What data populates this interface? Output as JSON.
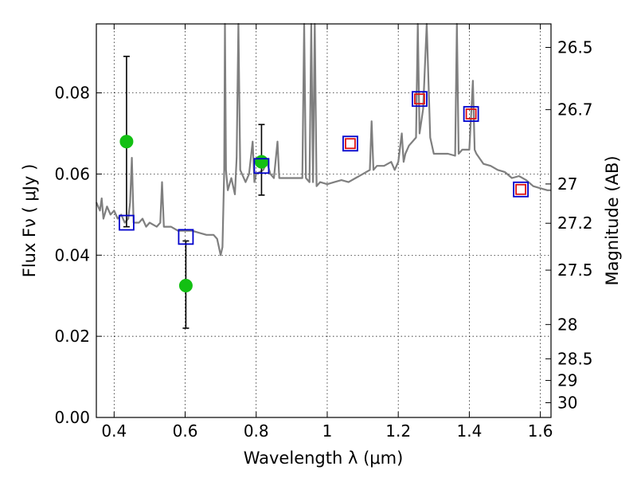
{
  "chart_data": {
    "type": "scatter",
    "xlabel": "Wavelength  λ (μm)",
    "ylabel": "Flux  Fν  ( μJy )",
    "y2label": "Magnitude (AB)",
    "xlim": [
      0.35,
      1.63
    ],
    "ylim": [
      0.0,
      0.097
    ],
    "x_ticks": [
      "0.4",
      "0.6",
      "0.8",
      "1",
      "1.2",
      "1.4",
      "1.6"
    ],
    "x_tick_values": [
      0.4,
      0.6,
      0.8,
      1.0,
      1.2,
      1.4,
      1.6
    ],
    "y_ticks": [
      "0.00",
      "0.02",
      "0.04",
      "0.06",
      "0.08"
    ],
    "y_tick_values": [
      0.0,
      0.02,
      0.04,
      0.06,
      0.08
    ],
    "mag_ticks": [
      "26.5",
      "26.7",
      "27",
      "27.2",
      "27.5",
      "28",
      "28.5",
      "29",
      "30"
    ],
    "mag_tick_values": [
      26.5,
      26.7,
      27.0,
      27.2,
      27.5,
      28.0,
      28.5,
      29.0,
      30.0
    ],
    "grid": true,
    "series": [
      {
        "style": "line",
        "color": "#7f7f7f",
        "points": [
          [
            0.35,
            0.053
          ],
          [
            0.36,
            0.051
          ],
          [
            0.365,
            0.054
          ],
          [
            0.37,
            0.049
          ],
          [
            0.38,
            0.052
          ],
          [
            0.39,
            0.05
          ],
          [
            0.4,
            0.051
          ],
          [
            0.41,
            0.049
          ],
          [
            0.42,
            0.05
          ],
          [
            0.43,
            0.048
          ],
          [
            0.44,
            0.049
          ],
          [
            0.445,
            0.053
          ],
          [
            0.45,
            0.064
          ],
          [
            0.455,
            0.048
          ],
          [
            0.47,
            0.048
          ],
          [
            0.48,
            0.049
          ],
          [
            0.49,
            0.047
          ],
          [
            0.5,
            0.048
          ],
          [
            0.52,
            0.047
          ],
          [
            0.53,
            0.048
          ],
          [
            0.535,
            0.058
          ],
          [
            0.54,
            0.047
          ],
          [
            0.56,
            0.047
          ],
          [
            0.58,
            0.046
          ],
          [
            0.6,
            0.046
          ],
          [
            0.62,
            0.046
          ],
          [
            0.64,
            0.0455
          ],
          [
            0.66,
            0.045
          ],
          [
            0.68,
            0.045
          ],
          [
            0.69,
            0.044
          ],
          [
            0.7,
            0.04
          ],
          [
            0.705,
            0.042
          ],
          [
            0.71,
            0.061
          ],
          [
            0.712,
            0.097
          ],
          [
            0.715,
            0.061
          ],
          [
            0.72,
            0.056
          ],
          [
            0.73,
            0.059
          ],
          [
            0.74,
            0.055
          ],
          [
            0.745,
            0.064
          ],
          [
            0.75,
            0.097
          ],
          [
            0.755,
            0.061
          ],
          [
            0.77,
            0.058
          ],
          [
            0.78,
            0.06
          ],
          [
            0.79,
            0.068
          ],
          [
            0.795,
            0.058
          ],
          [
            0.8,
            0.06
          ],
          [
            0.82,
            0.061
          ],
          [
            0.83,
            0.063
          ],
          [
            0.84,
            0.06
          ],
          [
            0.85,
            0.059
          ],
          [
            0.86,
            0.068
          ],
          [
            0.865,
            0.059
          ],
          [
            0.88,
            0.059
          ],
          [
            0.9,
            0.059
          ],
          [
            0.92,
            0.059
          ],
          [
            0.93,
            0.059
          ],
          [
            0.935,
            0.097
          ],
          [
            0.94,
            0.059
          ],
          [
            0.95,
            0.058
          ],
          [
            0.955,
            0.097
          ],
          [
            0.96,
            0.058
          ],
          [
            0.965,
            0.097
          ],
          [
            0.97,
            0.057
          ],
          [
            0.98,
            0.058
          ],
          [
            1.0,
            0.0575
          ],
          [
            1.02,
            0.058
          ],
          [
            1.04,
            0.0585
          ],
          [
            1.06,
            0.058
          ],
          [
            1.08,
            0.059
          ],
          [
            1.1,
            0.06
          ],
          [
            1.12,
            0.061
          ],
          [
            1.125,
            0.073
          ],
          [
            1.13,
            0.061
          ],
          [
            1.14,
            0.062
          ],
          [
            1.16,
            0.062
          ],
          [
            1.18,
            0.063
          ],
          [
            1.19,
            0.061
          ],
          [
            1.2,
            0.063
          ],
          [
            1.21,
            0.07
          ],
          [
            1.215,
            0.063
          ],
          [
            1.22,
            0.065
          ],
          [
            1.23,
            0.067
          ],
          [
            1.25,
            0.069
          ],
          [
            1.255,
            0.097
          ],
          [
            1.26,
            0.07
          ],
          [
            1.27,
            0.076
          ],
          [
            1.28,
            0.097
          ],
          [
            1.29,
            0.069
          ],
          [
            1.3,
            0.065
          ],
          [
            1.32,
            0.065
          ],
          [
            1.34,
            0.065
          ],
          [
            1.36,
            0.0645
          ],
          [
            1.365,
            0.097
          ],
          [
            1.37,
            0.065
          ],
          [
            1.38,
            0.066
          ],
          [
            1.4,
            0.066
          ],
          [
            1.41,
            0.083
          ],
          [
            1.415,
            0.066
          ],
          [
            1.42,
            0.065
          ],
          [
            1.44,
            0.0625
          ],
          [
            1.46,
            0.062
          ],
          [
            1.48,
            0.061
          ],
          [
            1.5,
            0.0605
          ],
          [
            1.52,
            0.059
          ],
          [
            1.54,
            0.0595
          ],
          [
            1.56,
            0.0585
          ],
          [
            1.58,
            0.057
          ],
          [
            1.6,
            0.0565
          ],
          [
            1.62,
            0.056
          ],
          [
            1.63,
            0.056
          ]
        ]
      },
      {
        "style": "circle",
        "color": "#13c013",
        "points": [
          [
            0.435,
            0.068
          ],
          [
            0.602,
            0.0325
          ],
          [
            0.815,
            0.063
          ]
        ]
      },
      {
        "style": "open-square",
        "color": "#0000cc",
        "points": [
          [
            0.435,
            0.048
          ],
          [
            0.602,
            0.0445
          ],
          [
            0.815,
            0.062
          ],
          [
            1.065,
            0.0675
          ],
          [
            1.26,
            0.0785
          ],
          [
            1.405,
            0.0748
          ],
          [
            1.545,
            0.0562
          ]
        ]
      },
      {
        "style": "open-square",
        "color": "#dd1111",
        "points": [
          [
            1.065,
            0.0675
          ],
          [
            1.26,
            0.0785
          ],
          [
            1.405,
            0.0748
          ],
          [
            1.545,
            0.0562
          ]
        ]
      },
      {
        "style": "errorbar",
        "color": "#000000",
        "points": [
          [
            0.435,
            0.047,
            0.089
          ],
          [
            0.602,
            0.022,
            0.0435
          ],
          [
            0.815,
            0.0548,
            0.0722
          ]
        ]
      }
    ]
  }
}
